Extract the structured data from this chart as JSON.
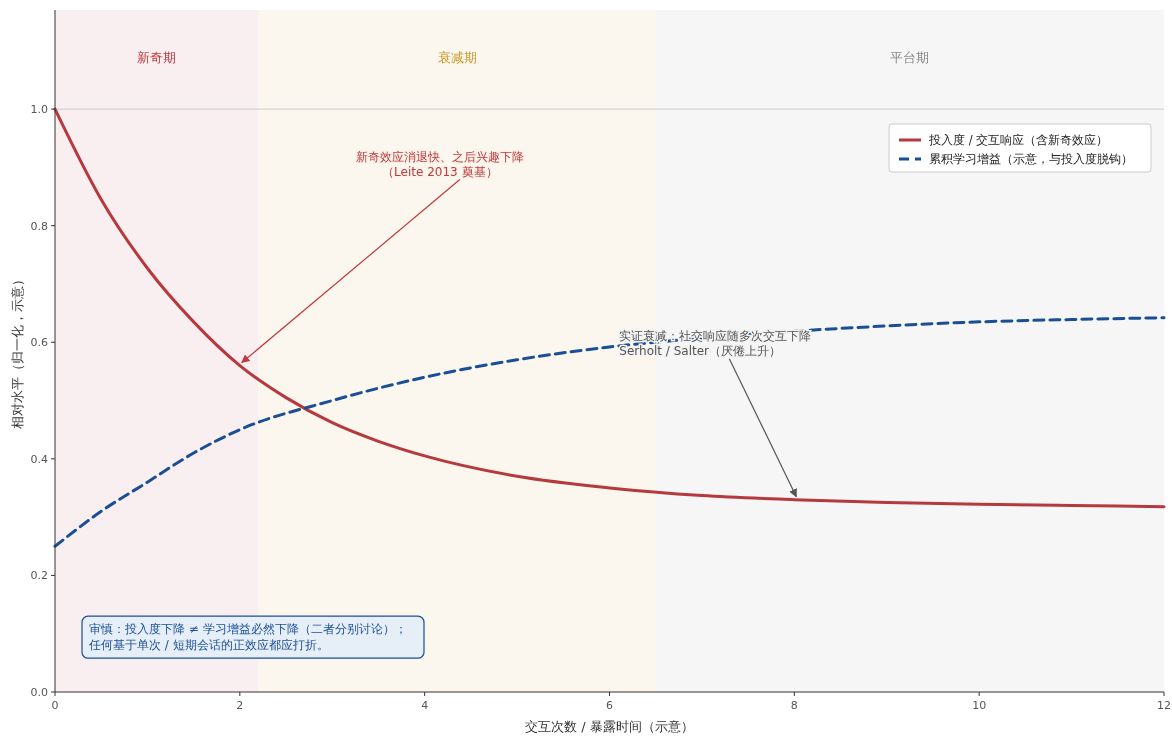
{
  "chart_data": {
    "type": "line",
    "xlabel": "交互次数 / 暴露时间（示意）",
    "ylabel": "相对水平（归一化，示意）",
    "xlim": [
      0,
      12
    ],
    "xticks": [
      0,
      2,
      4,
      6,
      8,
      10,
      12
    ],
    "ylim": [
      0,
      1.17
    ],
    "yticks": [
      {
        "value": 0,
        "label": "0.0"
      },
      0.2,
      0.4,
      0.6,
      0.8,
      {
        "value": 1,
        "label": "1.0"
      }
    ],
    "grid": false,
    "legend": "top right",
    "marker": "none",
    "series": [
      {
        "name": "投入度 / 交互响应（含新奇效应）",
        "color": "#b5393d",
        "line_style": "solid",
        "x": [
          0,
          0.5,
          1,
          1.5,
          2,
          2.5,
          3,
          3.5,
          4,
          5,
          6,
          7,
          8,
          9,
          10,
          11,
          12
        ],
        "values": [
          1.0,
          0.845,
          0.727,
          0.635,
          0.56,
          0.505,
          0.462,
          0.43,
          0.405,
          0.37,
          0.35,
          0.337,
          0.33,
          0.325,
          0.322,
          0.32,
          0.318
        ]
      },
      {
        "name": "累积学习增益（示意，与投入度脱钩）",
        "color": "#1a4f96",
        "line_style": "dashed",
        "x": [
          0,
          0.5,
          1,
          1.5,
          2,
          3,
          4,
          5,
          6,
          7,
          8,
          9,
          10,
          11,
          12
        ],
        "values": [
          0.25,
          0.31,
          0.36,
          0.41,
          0.45,
          0.5,
          0.54,
          0.57,
          0.592,
          0.607,
          0.619,
          0.628,
          0.635,
          0.639,
          0.642
        ]
      }
    ],
    "bands": [
      {
        "axis": "x",
        "from": 0,
        "to": 2.2,
        "label": "新奇期",
        "color": "#c0393d"
      },
      {
        "axis": "x",
        "from": 2.2,
        "to": 6.5,
        "label": "衰减期",
        "color": "#c89b2a"
      },
      {
        "axis": "x",
        "from": 6.5,
        "to": 12,
        "label": "平台期",
        "color": "#888888"
      }
    ],
    "ref_lines": [
      {
        "axis": "y",
        "value": 1.0,
        "color": "#cccccc"
      }
    ],
    "annotations": [
      {
        "text": "新奇效应消退快、之后兴趣下降（Leite 2013 奠基）",
        "x": 2,
        "y": 0.56
      },
      {
        "text": "实证衰减：社交响应随多次交互下降Serholt / Salter（厌倦上升）",
        "x": 8,
        "y": 0.33
      },
      "审慎：投入度下降 ≠ 学习增益必然下降（二者分别讨论）；任何基于单次 / 短期会话的正效应都应打折。"
    ]
  }
}
